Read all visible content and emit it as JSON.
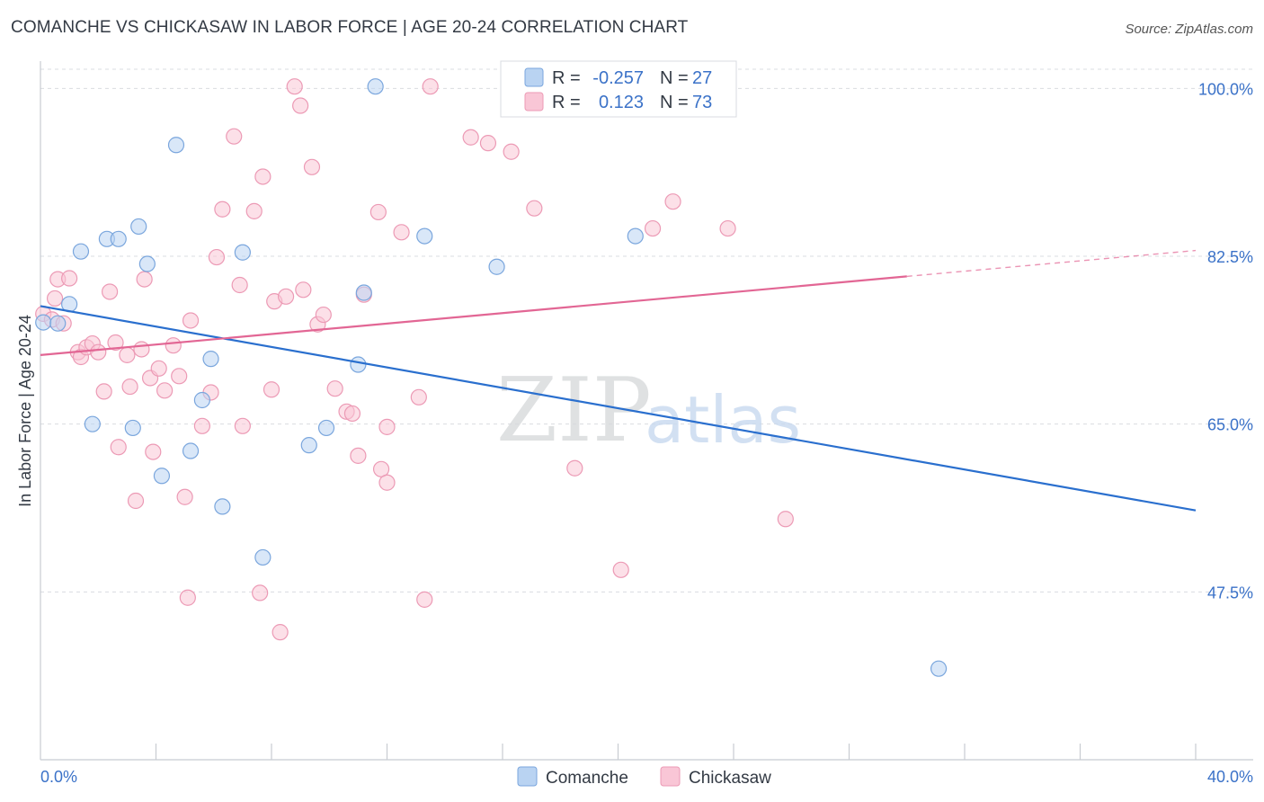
{
  "header": {
    "title": "COMANCHE VS CHICKASAW IN LABOR FORCE | AGE 20-24 CORRELATION CHART",
    "source": "Source: ZipAtlas.com"
  },
  "watermark": {
    "zip": "ZIP",
    "atlas": "atlas"
  },
  "colors": {
    "comanche_fill": "#b9d3f2",
    "comanche_stroke": "#7aa6dd",
    "comanche_line": "#2a6fce",
    "chickasaw_fill": "#f9c6d6",
    "chickasaw_stroke": "#ec9ab5",
    "chickasaw_line": "#e26694",
    "axis_text": "#3b72c8",
    "grid": "#d9dce0"
  },
  "legend": {
    "rows": [
      {
        "r_label": "R =",
        "r_value": "-0.257",
        "n_label": "N =",
        "n_value": "27"
      },
      {
        "r_label": "R =",
        "r_value": "0.123",
        "n_label": "N =",
        "n_value": "73"
      }
    ]
  },
  "chart_data": {
    "type": "scatter",
    "title": "COMANCHE VS CHICKASAW IN LABOR FORCE | AGE 20-24 CORRELATION CHART",
    "xlabel": "",
    "ylabel": "In Labor Force | Age 20-24",
    "xlim": [
      0,
      40
    ],
    "ylim": [
      30,
      102
    ],
    "x_tick_labels": [
      "0.0%",
      "40.0%"
    ],
    "y_ticks": [
      47.5,
      65.0,
      82.5,
      100.0
    ],
    "y_tick_labels": [
      "47.5%",
      "65.0%",
      "82.5%",
      "100.0%"
    ],
    "grid": true,
    "legend_position": "top-center",
    "series": [
      {
        "name": "Comanche",
        "r": -0.257,
        "n": 27,
        "trend": {
          "x": [
            0,
            40
          ],
          "y": [
            77.3,
            56.0
          ]
        },
        "points": [
          [
            0.1,
            75.6
          ],
          [
            0.6,
            75.5
          ],
          [
            1.0,
            77.5
          ],
          [
            1.4,
            83.0
          ],
          [
            1.8,
            65.0
          ],
          [
            2.3,
            84.3
          ],
          [
            2.7,
            84.3
          ],
          [
            3.2,
            64.6
          ],
          [
            3.4,
            85.6
          ],
          [
            3.7,
            81.7
          ],
          [
            4.2,
            59.6
          ],
          [
            4.7,
            94.1
          ],
          [
            5.2,
            62.2
          ],
          [
            5.6,
            67.5
          ],
          [
            5.9,
            71.8
          ],
          [
            6.3,
            56.4
          ],
          [
            7.0,
            82.9
          ],
          [
            7.7,
            51.1
          ],
          [
            9.3,
            62.8
          ],
          [
            9.9,
            64.6
          ],
          [
            11.2,
            78.7
          ],
          [
            11.0,
            71.2
          ],
          [
            11.6,
            100.2
          ],
          [
            13.3,
            84.6
          ],
          [
            15.8,
            81.4
          ],
          [
            20.6,
            84.6
          ],
          [
            31.1,
            39.5
          ]
        ]
      },
      {
        "name": "Chickasaw",
        "r": 0.123,
        "n": 73,
        "trend": {
          "x": [
            0,
            30
          ],
          "y": [
            72.2,
            80.4
          ]
        },
        "trend_dashed": {
          "x": [
            30,
            40
          ],
          "y": [
            80.4,
            83.1
          ]
        },
        "points": [
          [
            0.1,
            76.5
          ],
          [
            0.4,
            75.9
          ],
          [
            0.5,
            78.1
          ],
          [
            0.6,
            80.1
          ],
          [
            0.8,
            75.5
          ],
          [
            1.0,
            80.2
          ],
          [
            1.3,
            72.5
          ],
          [
            1.4,
            72.0
          ],
          [
            1.6,
            73.0
          ],
          [
            1.8,
            73.4
          ],
          [
            2.0,
            72.5
          ],
          [
            2.2,
            68.4
          ],
          [
            2.4,
            78.8
          ],
          [
            2.6,
            73.5
          ],
          [
            2.7,
            62.6
          ],
          [
            3.0,
            72.2
          ],
          [
            3.1,
            68.9
          ],
          [
            3.3,
            57.0
          ],
          [
            3.5,
            72.8
          ],
          [
            3.6,
            80.1
          ],
          [
            3.8,
            69.8
          ],
          [
            3.9,
            62.1
          ],
          [
            4.1,
            70.8
          ],
          [
            4.3,
            68.5
          ],
          [
            4.6,
            73.2
          ],
          [
            4.8,
            70.0
          ],
          [
            5.0,
            57.4
          ],
          [
            5.1,
            46.9
          ],
          [
            5.2,
            75.8
          ],
          [
            5.6,
            64.8
          ],
          [
            5.9,
            68.3
          ],
          [
            6.1,
            82.4
          ],
          [
            6.3,
            87.4
          ],
          [
            6.7,
            95.0
          ],
          [
            6.9,
            79.5
          ],
          [
            7.0,
            64.8
          ],
          [
            7.4,
            87.2
          ],
          [
            7.7,
            90.8
          ],
          [
            7.6,
            47.4
          ],
          [
            8.0,
            68.6
          ],
          [
            8.1,
            77.8
          ],
          [
            8.3,
            43.3
          ],
          [
            8.5,
            78.3
          ],
          [
            8.8,
            100.2
          ],
          [
            9.0,
            98.2
          ],
          [
            9.1,
            79.0
          ],
          [
            9.4,
            91.8
          ],
          [
            9.6,
            75.4
          ],
          [
            9.8,
            76.4
          ],
          [
            10.2,
            68.7
          ],
          [
            10.6,
            66.3
          ],
          [
            10.8,
            66.1
          ],
          [
            11.0,
            61.7
          ],
          [
            11.2,
            78.5
          ],
          [
            11.7,
            87.1
          ],
          [
            11.8,
            60.3
          ],
          [
            12.0,
            58.9
          ],
          [
            12.0,
            64.7
          ],
          [
            12.5,
            85.0
          ],
          [
            13.1,
            67.8
          ],
          [
            13.3,
            46.7
          ],
          [
            13.5,
            100.2
          ],
          [
            14.9,
            94.9
          ],
          [
            15.5,
            94.3
          ],
          [
            16.3,
            93.4
          ],
          [
            16.5,
            100.2
          ],
          [
            17.1,
            87.5
          ],
          [
            18.5,
            60.4
          ],
          [
            20.1,
            49.8
          ],
          [
            21.2,
            85.4
          ],
          [
            21.9,
            88.2
          ],
          [
            23.8,
            85.4
          ],
          [
            25.8,
            55.1
          ]
        ]
      }
    ]
  },
  "bottom_legend": {
    "items": [
      "Comanche",
      "Chickasaw"
    ]
  }
}
